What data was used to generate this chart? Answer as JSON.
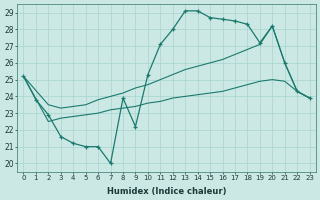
{
  "xlabel": "Humidex (Indice chaleur)",
  "ylabel": "",
  "xlim": [
    -0.5,
    23.5
  ],
  "ylim": [
    19.5,
    29.5
  ],
  "xticks": [
    0,
    1,
    2,
    3,
    4,
    5,
    6,
    7,
    8,
    9,
    10,
    11,
    12,
    13,
    14,
    15,
    16,
    17,
    18,
    19,
    20,
    21,
    22,
    23
  ],
  "yticks": [
    20,
    21,
    22,
    23,
    24,
    25,
    26,
    27,
    28,
    29
  ],
  "background_color": "#cce8e4",
  "grid_color": "#a8d4ce",
  "line_color": "#1a7a6e",
  "line1_x": [
    0,
    1,
    2,
    3,
    4,
    5,
    6,
    7,
    8,
    9,
    10,
    11,
    12,
    13,
    14,
    15,
    16,
    17,
    18,
    19,
    20,
    21,
    22,
    23
  ],
  "line1_y": [
    25.2,
    23.8,
    22.9,
    21.6,
    21.2,
    21.0,
    21.0,
    20.0,
    23.9,
    22.2,
    25.3,
    27.1,
    28.0,
    29.1,
    29.1,
    28.7,
    28.6,
    28.5,
    28.3,
    27.2,
    28.2,
    26.0,
    24.3,
    23.9
  ],
  "line2_x": [
    0,
    2,
    3,
    5,
    6,
    7,
    8,
    9,
    10,
    11,
    12,
    13,
    14,
    15,
    16,
    17,
    18,
    19,
    20,
    21,
    22,
    23
  ],
  "line2_y": [
    25.2,
    23.5,
    23.3,
    23.5,
    23.8,
    24.0,
    24.2,
    24.5,
    24.7,
    25.0,
    25.3,
    25.6,
    25.8,
    26.0,
    26.2,
    26.5,
    26.8,
    27.1,
    28.2,
    26.0,
    24.3,
    23.9
  ],
  "line3_x": [
    0,
    2,
    3,
    4,
    5,
    6,
    7,
    8,
    9,
    10,
    11,
    12,
    13,
    14,
    15,
    16,
    17,
    18,
    19,
    20,
    21,
    22,
    23
  ],
  "line3_y": [
    25.2,
    22.5,
    22.7,
    22.8,
    22.9,
    23.0,
    23.2,
    23.3,
    23.4,
    23.6,
    23.7,
    23.9,
    24.0,
    24.1,
    24.2,
    24.3,
    24.5,
    24.7,
    24.9,
    25.0,
    24.9,
    24.3,
    23.9
  ]
}
